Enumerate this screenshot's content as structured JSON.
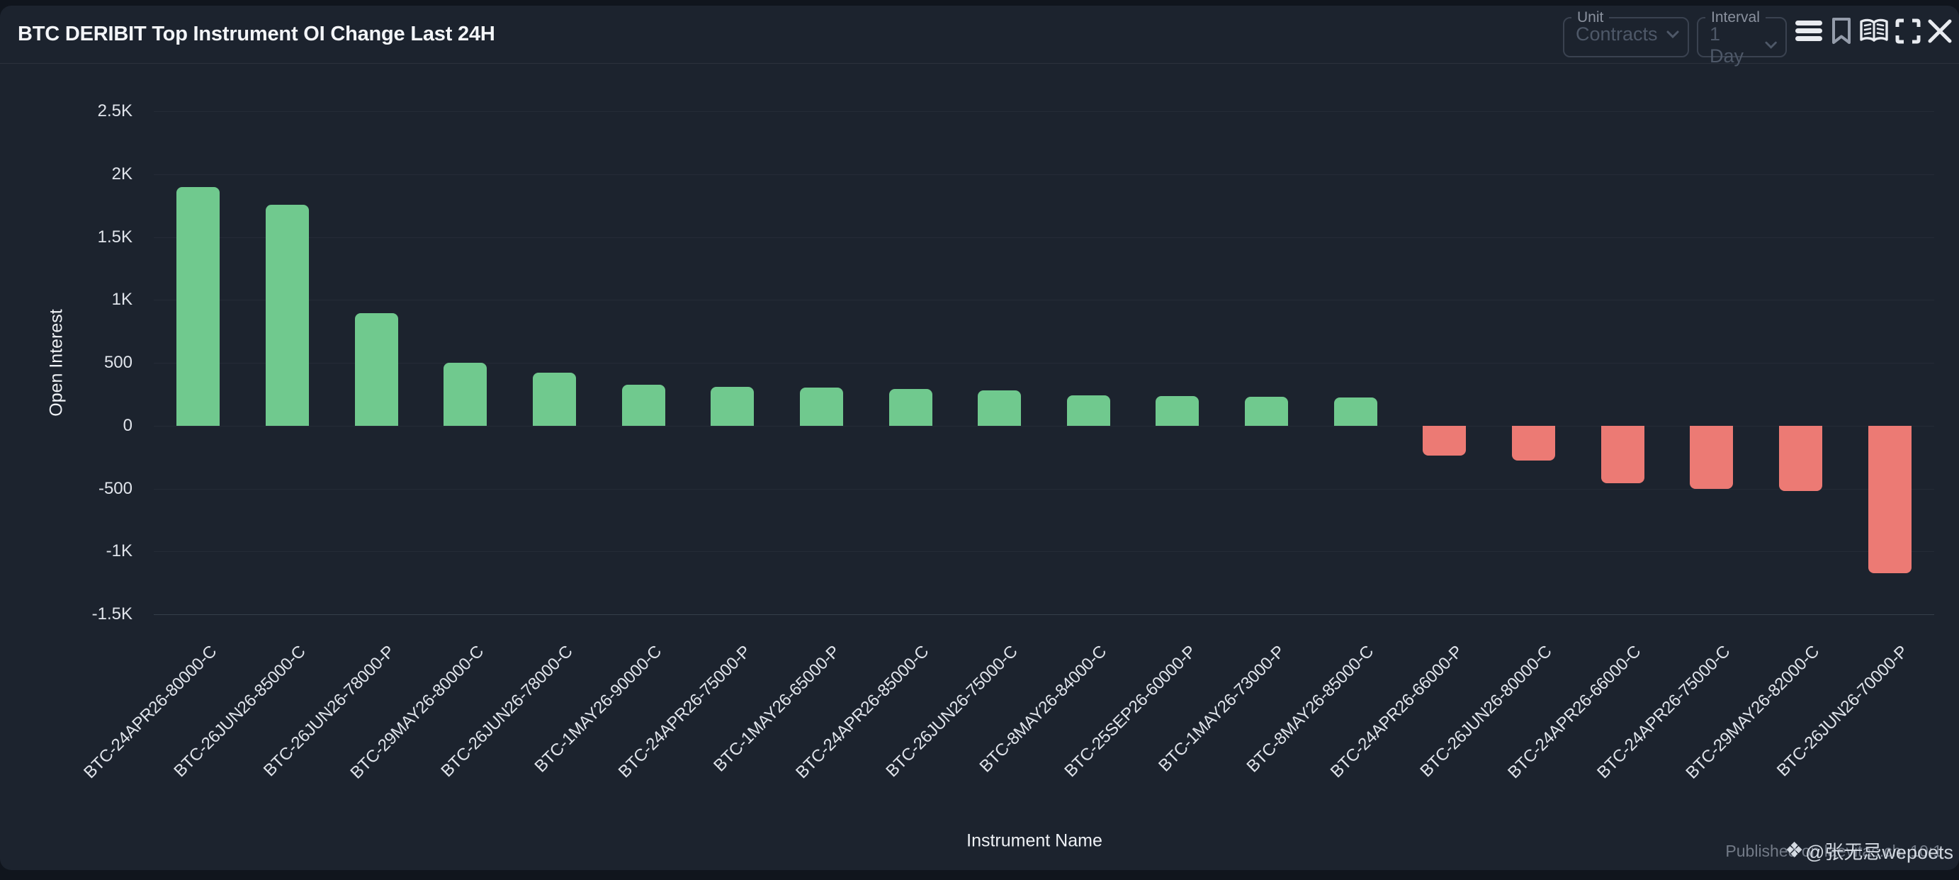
{
  "header": {
    "title": "BTC DERIBIT Top Instrument OI Change Last 24H",
    "unit_control": {
      "label": "Unit",
      "value": "Contracts"
    },
    "interval_control": {
      "label": "Interval",
      "value": "1 Day"
    }
  },
  "footer": {
    "published_text": "Published on laevitas.ch, 10:1",
    "watermark_icon": "❖",
    "watermark_text": "@张无忌wepoets"
  },
  "colors": {
    "positive": "#70c98e",
    "negative": "#ec7a74",
    "card_bg": "#1c232e",
    "page_bg": "#10151d",
    "grid": "rgba(150,162,180,0.07)",
    "tick_text": "#e0e4eb"
  },
  "chart_data": {
    "type": "bar",
    "title": "BTC DERIBIT Top Instrument OI Change Last 24H",
    "xlabel": "Instrument Name",
    "ylabel": "Open Interest",
    "ylim": [
      -1500,
      2500
    ],
    "grid": true,
    "legend_position": "none",
    "yticks": [
      {
        "label": "2.5K",
        "value": 2500
      },
      {
        "label": "2K",
        "value": 2000
      },
      {
        "label": "1.5K",
        "value": 1500
      },
      {
        "label": "1K",
        "value": 1000
      },
      {
        "label": "500",
        "value": 500
      },
      {
        "label": "0",
        "value": 0
      },
      {
        "label": "-500",
        "value": -500
      },
      {
        "label": "-1K",
        "value": -1000
      },
      {
        "label": "-1.5K",
        "value": -1500
      }
    ],
    "categories": [
      "BTC-24APR26-80000-C",
      "BTC-26JUN26-85000-C",
      "BTC-26JUN26-78000-P",
      "BTC-29MAY26-80000-C",
      "BTC-26JUN26-78000-C",
      "BTC-1MAY26-90000-C",
      "BTC-24APR26-75000-P",
      "BTC-1MAY26-65000-P",
      "BTC-24APR26-85000-C",
      "BTC-26JUN26-75000-C",
      "BTC-8MAY26-84000-C",
      "BTC-25SEP26-60000-P",
      "BTC-1MAY26-73000-P",
      "BTC-8MAY26-85000-C",
      "BTC-24APR26-66000-P",
      "BTC-26JUN26-80000-C",
      "BTC-24APR26-66000-C",
      "BTC-24APR26-75000-C",
      "BTC-29MAY26-82000-C",
      "BTC-26JUN26-70000-P"
    ],
    "values": [
      1900,
      1755,
      895,
      500,
      420,
      325,
      310,
      305,
      290,
      280,
      240,
      235,
      230,
      225,
      -240,
      -275,
      -460,
      -505,
      -520,
      -1175
    ]
  }
}
